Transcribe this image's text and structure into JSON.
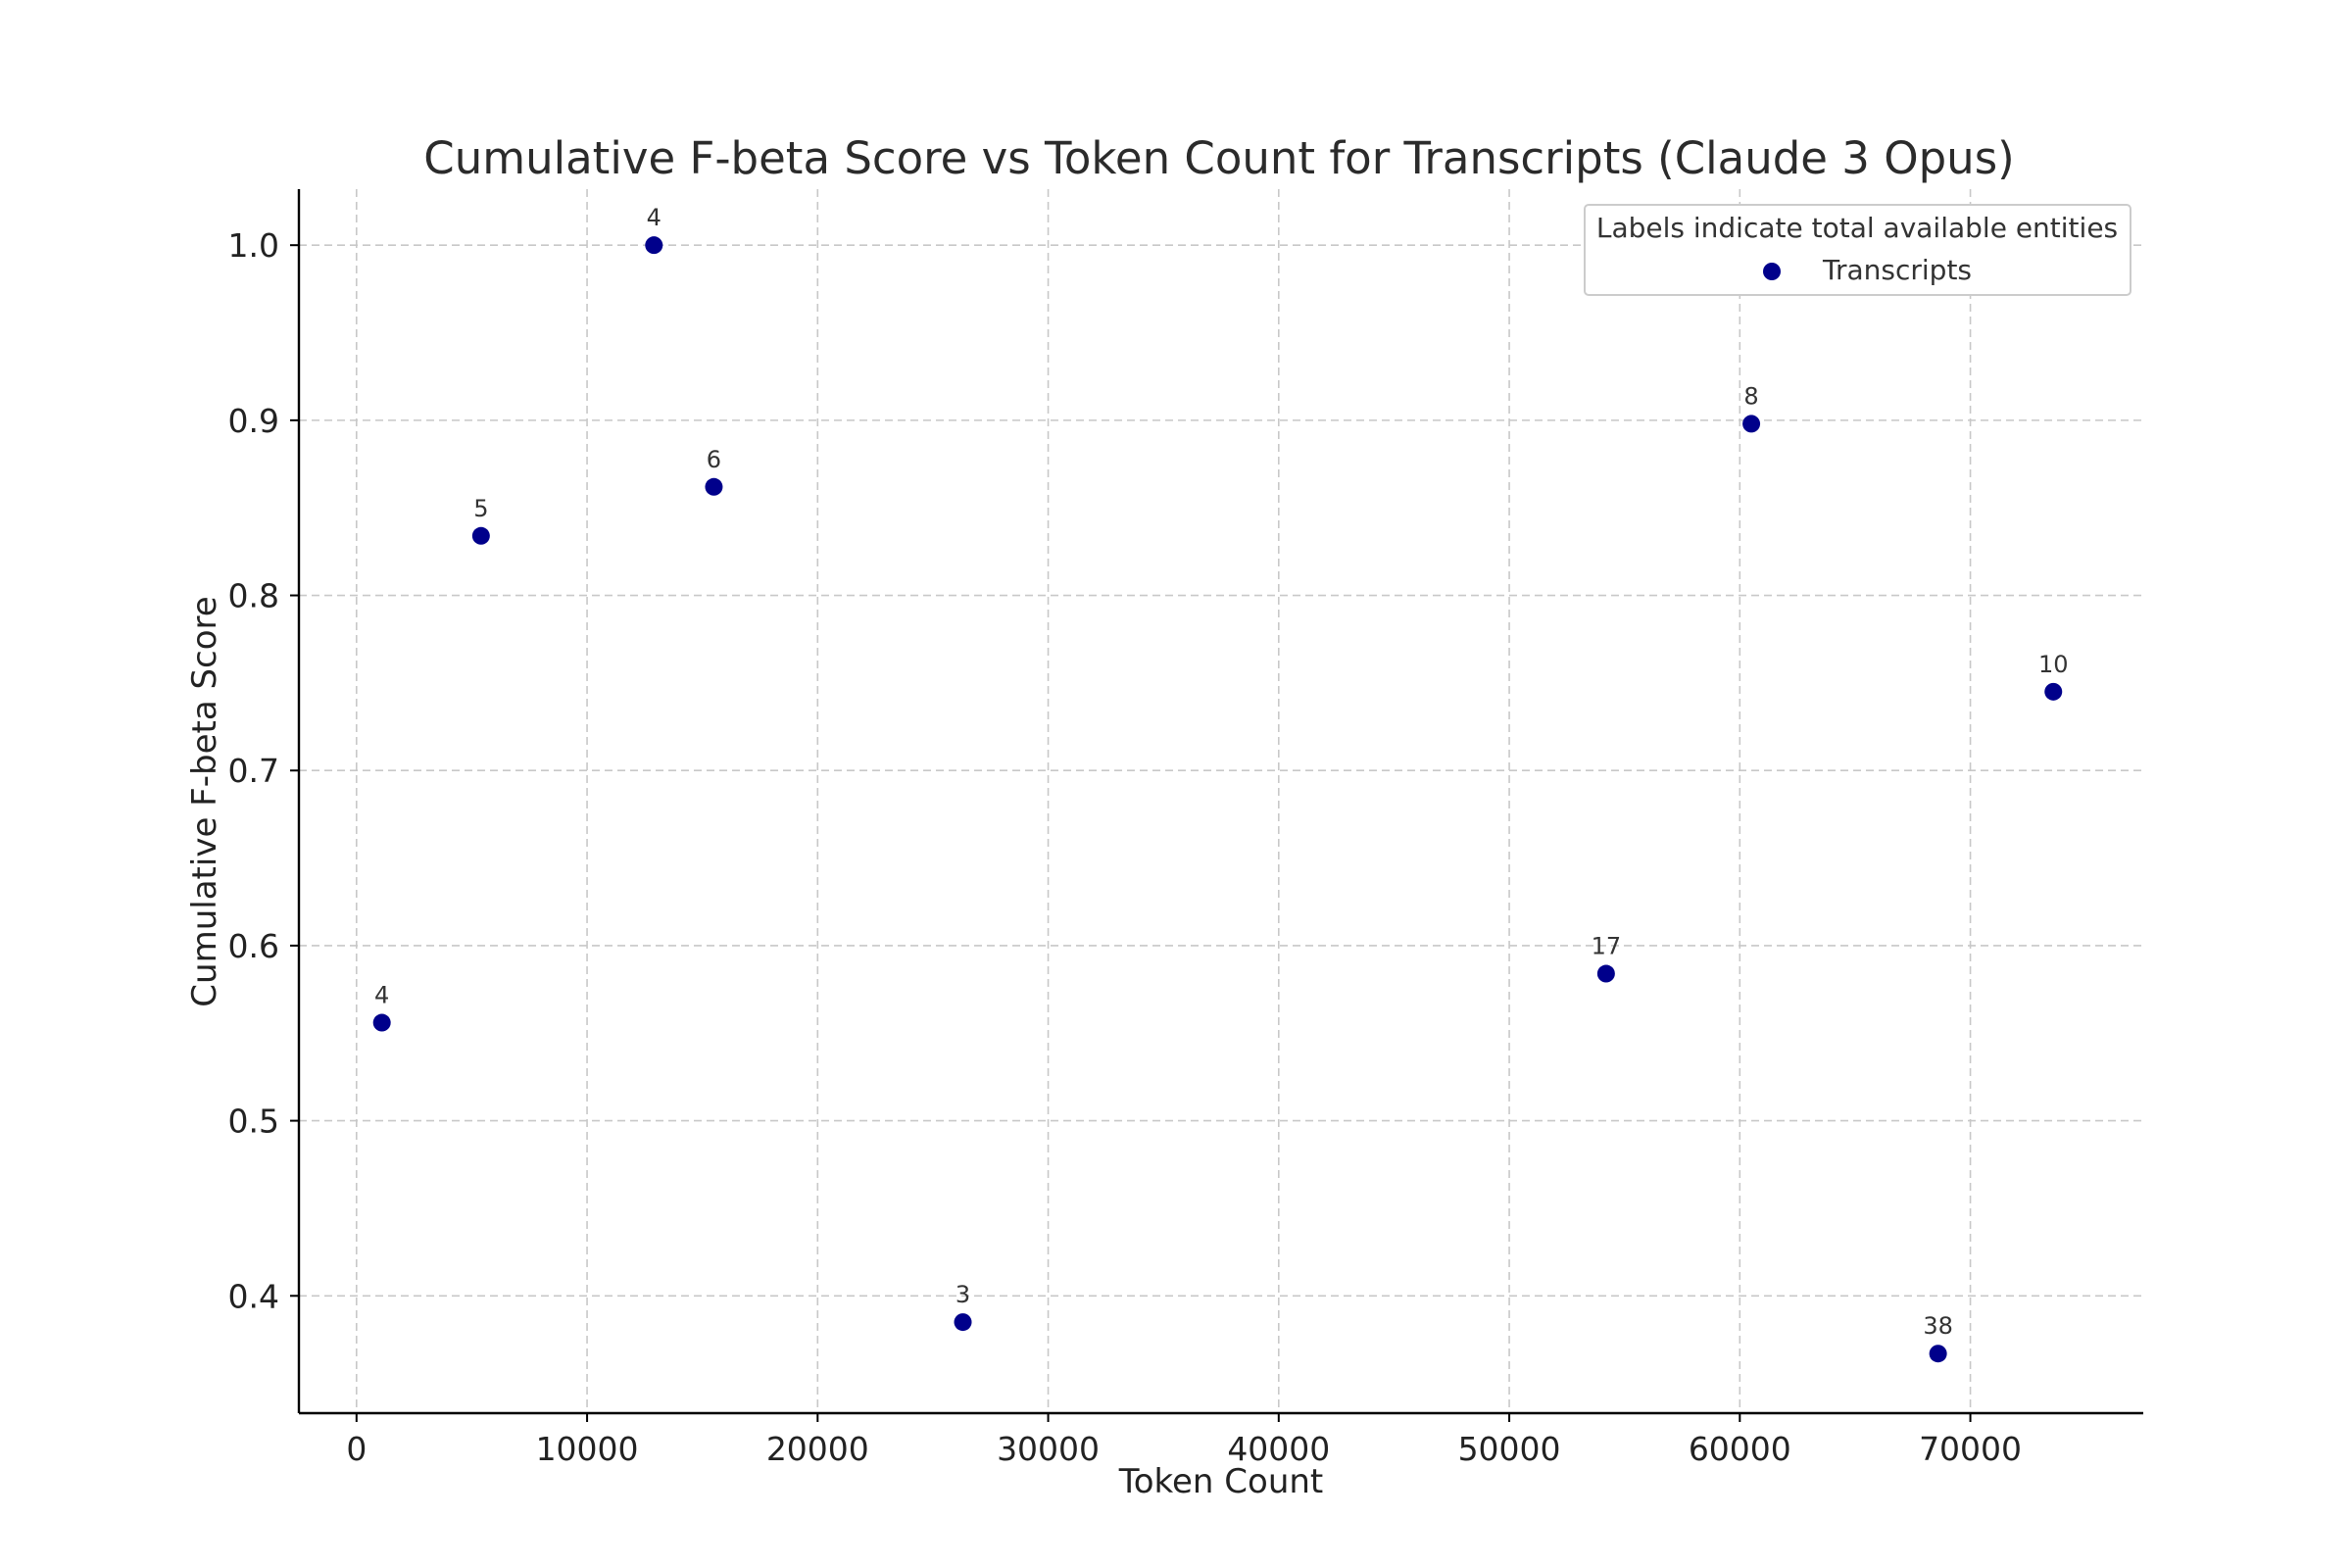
{
  "chart_data": {
    "type": "scatter",
    "title": "Cumulative F-beta Score vs Token Count for Transcripts (Claude 3 Opus)",
    "xlabel": "Token Count",
    "ylabel": "Cumulative F-beta Score",
    "xlim": [
      -2500,
      77500
    ],
    "ylim": [
      0.333,
      1.032
    ],
    "xticks": [
      0,
      10000,
      20000,
      30000,
      40000,
      50000,
      60000,
      70000
    ],
    "xtick_labels": [
      "0",
      "10000",
      "20000",
      "30000",
      "40000",
      "50000",
      "60000",
      "70000"
    ],
    "yticks": [
      0.4,
      0.5,
      0.6,
      0.7,
      0.8,
      0.9,
      1.0
    ],
    "ytick_labels": [
      "0.4",
      "0.5",
      "0.6",
      "0.7",
      "0.8",
      "0.9",
      "1.0"
    ],
    "grid": true,
    "legend": {
      "title": "Labels indicate total available entities",
      "placement": "top-right"
    },
    "series": [
      {
        "name": "Transcripts",
        "color": "#00008b",
        "points": [
          {
            "x": 1100,
            "y": 0.556,
            "label": "4"
          },
          {
            "x": 5400,
            "y": 0.834,
            "label": "5"
          },
          {
            "x": 12900,
            "y": 1.0,
            "label": "4"
          },
          {
            "x": 15500,
            "y": 0.862,
            "label": "6"
          },
          {
            "x": 26300,
            "y": 0.385,
            "label": "3"
          },
          {
            "x": 54200,
            "y": 0.584,
            "label": "17"
          },
          {
            "x": 60500,
            "y": 0.898,
            "label": "8"
          },
          {
            "x": 68600,
            "y": 0.367,
            "label": "38"
          },
          {
            "x": 73600,
            "y": 0.745,
            "label": "10"
          }
        ]
      }
    ]
  }
}
